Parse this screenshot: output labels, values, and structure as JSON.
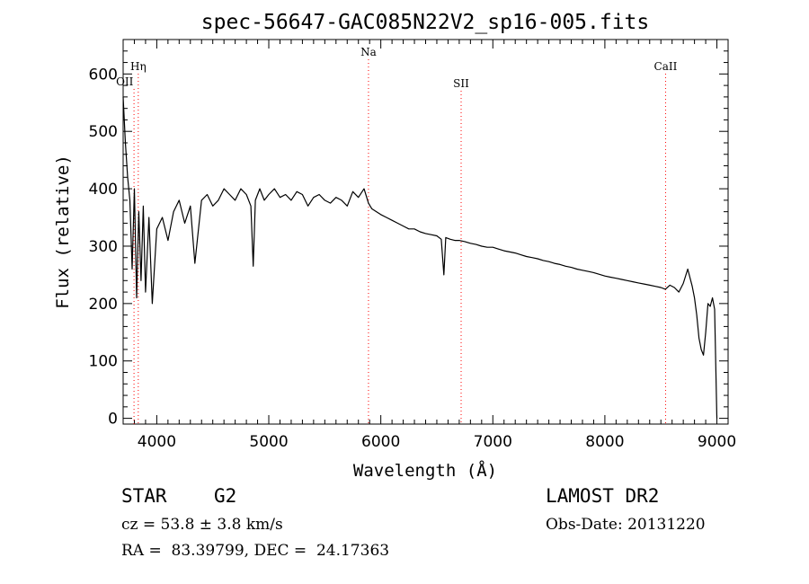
{
  "chart_data": {
    "type": "line",
    "title": "spec-56647-GAC085N22V2_sp16-005.fits",
    "xlabel": "Wavelength (Å)",
    "ylabel": "Flux (relative)",
    "xlim": [
      3700,
      9100
    ],
    "ylim": [
      -10,
      660
    ],
    "xticks": [
      4000,
      5000,
      6000,
      7000,
      8000,
      9000
    ],
    "yticks": [
      0,
      100,
      200,
      300,
      400,
      500,
      600
    ],
    "xtick_labels": [
      "4000",
      "5000",
      "6000",
      "7000",
      "8000",
      "9000"
    ],
    "ytick_labels": [
      "0",
      "100",
      "200",
      "300",
      "400",
      "500",
      "600"
    ],
    "line_color": "#000000",
    "marker_color": "#ff0000",
    "series": [
      {
        "x": [
          3700,
          3720,
          3740,
          3760,
          3780,
          3800,
          3820,
          3840,
          3860,
          3880,
          3900,
          3930,
          3960,
          4000,
          4050,
          4100,
          4150,
          4200,
          4250,
          4300,
          4340,
          4400,
          4450,
          4500,
          4550,
          4600,
          4650,
          4700,
          4750,
          4800,
          4840,
          4861,
          4880,
          4920,
          4960,
          5000,
          5050,
          5100,
          5150,
          5200,
          5250,
          5300,
          5350,
          5400,
          5450,
          5500,
          5550,
          5600,
          5650,
          5700,
          5750,
          5800,
          5850,
          5890,
          5920,
          5960,
          6000,
          6050,
          6100,
          6150,
          6200,
          6250,
          6300,
          6350,
          6400,
          6450,
          6500,
          6540,
          6563,
          6580,
          6620,
          6660,
          6700,
          6750,
          6800,
          6850,
          6900,
          6950,
          7000,
          7050,
          7100,
          7150,
          7200,
          7250,
          7300,
          7350,
          7400,
          7450,
          7500,
          7550,
          7600,
          7650,
          7700,
          7750,
          7800,
          7850,
          7900,
          7950,
          8000,
          8050,
          8100,
          8150,
          8200,
          8250,
          8300,
          8350,
          8400,
          8450,
          8500,
          8540,
          8580,
          8620,
          8660,
          8700,
          8740,
          8780,
          8800,
          8820,
          8840,
          8860,
          8880,
          8900,
          8920,
          8940,
          8960,
          8980,
          9000
        ],
        "y": [
          560,
          480,
          420,
          380,
          260,
          400,
          210,
          360,
          240,
          370,
          220,
          350,
          200,
          330,
          350,
          310,
          360,
          380,
          340,
          370,
          270,
          380,
          390,
          370,
          380,
          400,
          390,
          380,
          400,
          390,
          370,
          265,
          380,
          400,
          380,
          390,
          400,
          385,
          390,
          380,
          395,
          390,
          370,
          385,
          390,
          380,
          375,
          385,
          380,
          370,
          395,
          385,
          400,
          375,
          365,
          360,
          355,
          350,
          345,
          340,
          335,
          330,
          330,
          325,
          322,
          320,
          318,
          312,
          250,
          315,
          312,
          310,
          310,
          308,
          305,
          303,
          300,
          298,
          298,
          295,
          292,
          290,
          288,
          285,
          282,
          280,
          278,
          275,
          273,
          270,
          268,
          265,
          263,
          260,
          258,
          256,
          254,
          251,
          248,
          246,
          244,
          242,
          240,
          238,
          236,
          234,
          232,
          230,
          228,
          225,
          232,
          228,
          220,
          235,
          260,
          230,
          210,
          180,
          140,
          120,
          110,
          150,
          200,
          195,
          210,
          190,
          0
        ]
      }
    ],
    "line_markers": [
      {
        "x": 3797,
        "label": "OII"
      },
      {
        "x": 3835,
        "label": "Hη"
      },
      {
        "x": 5890,
        "label": "Na"
      },
      {
        "x": 6717,
        "label": "SII"
      },
      {
        "x": 8542,
        "label": "CaII"
      }
    ]
  },
  "info": {
    "class_label": "STAR",
    "subclass": "G2",
    "survey": "LAMOST DR2",
    "redshift": "cz = 53.8 ± 3.8 km/s",
    "obs_date": "Obs-Date: 20131220",
    "coords": "RA =  83.39799, DEC =  24.17363"
  }
}
